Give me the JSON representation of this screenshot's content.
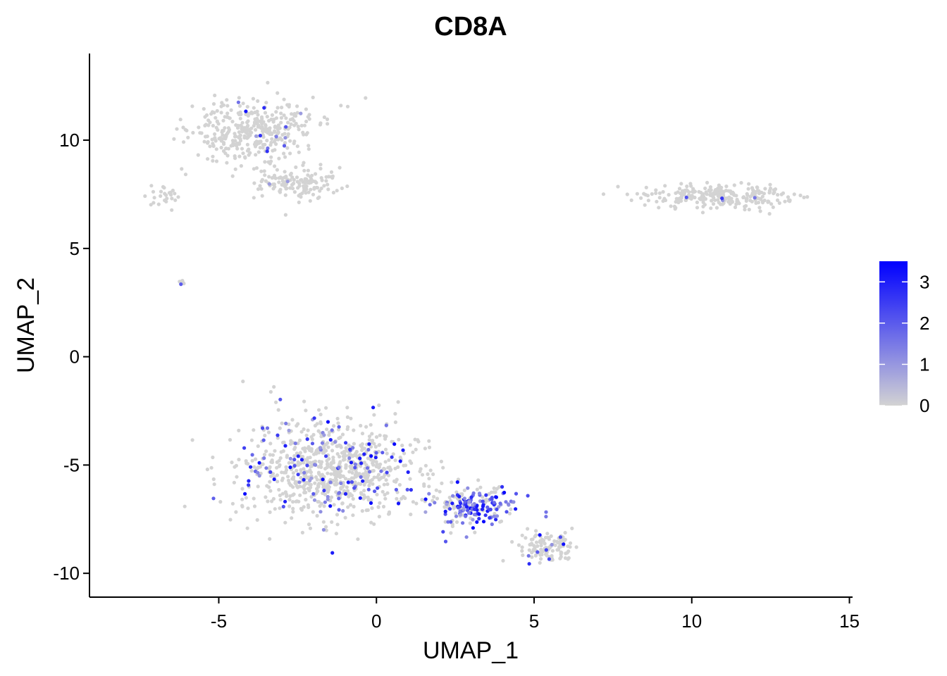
{
  "chart_data": {
    "type": "scatter",
    "title": "CD8A",
    "xlabel": "UMAP_1",
    "ylabel": "UMAP_2",
    "xlim": [
      -9.1,
      15.1
    ],
    "ylim": [
      -11.1,
      14.0
    ],
    "x_ticks": [
      -5,
      0,
      5,
      10,
      15
    ],
    "x_tick_labels": [
      "-5",
      "0",
      "5",
      "10",
      "15"
    ],
    "y_ticks": [
      -10,
      -5,
      0,
      5,
      10
    ],
    "y_tick_labels": [
      "-10",
      "-5",
      "0",
      "5",
      "10"
    ],
    "grid": false,
    "color_low": "#d3d3d3",
    "color_high": "#0000ff",
    "legend": {
      "position": "right",
      "min": 0,
      "max": 3.5,
      "ticks": [
        0,
        1,
        2,
        3
      ],
      "tick_labels": [
        "0",
        "1",
        "2",
        "3"
      ]
    },
    "clusters": [
      {
        "center": [
          -4.0,
          10.5
        ],
        "spread": [
          1.6,
          1.2
        ],
        "count": 380,
        "expr_rate": 0.02
      },
      {
        "center": [
          -2.5,
          8.0
        ],
        "spread": [
          1.1,
          0.6
        ],
        "count": 140,
        "expr_rate": 0.02
      },
      {
        "center": [
          -6.8,
          7.4
        ],
        "spread": [
          0.5,
          0.5
        ],
        "count": 25,
        "expr_rate": 0.0
      },
      {
        "center": [
          -6.2,
          3.4
        ],
        "spread": [
          0.12,
          0.1
        ],
        "count": 8,
        "expr_rate": 0.1
      },
      {
        "center": [
          10.8,
          7.4
        ],
        "spread": [
          2.0,
          0.45
        ],
        "count": 260,
        "expr_rate": 0.02
      },
      {
        "center": [
          -1.5,
          -5.2
        ],
        "spread": [
          2.3,
          1.9
        ],
        "count": 850,
        "expr_rate": 0.12
      },
      {
        "center": [
          3.0,
          -6.9
        ],
        "spread": [
          1.2,
          0.8
        ],
        "count": 220,
        "expr_rate": 0.55
      },
      {
        "center": [
          5.5,
          -8.8
        ],
        "spread": [
          0.8,
          0.6
        ],
        "count": 120,
        "expr_rate": 0.1
      }
    ]
  }
}
